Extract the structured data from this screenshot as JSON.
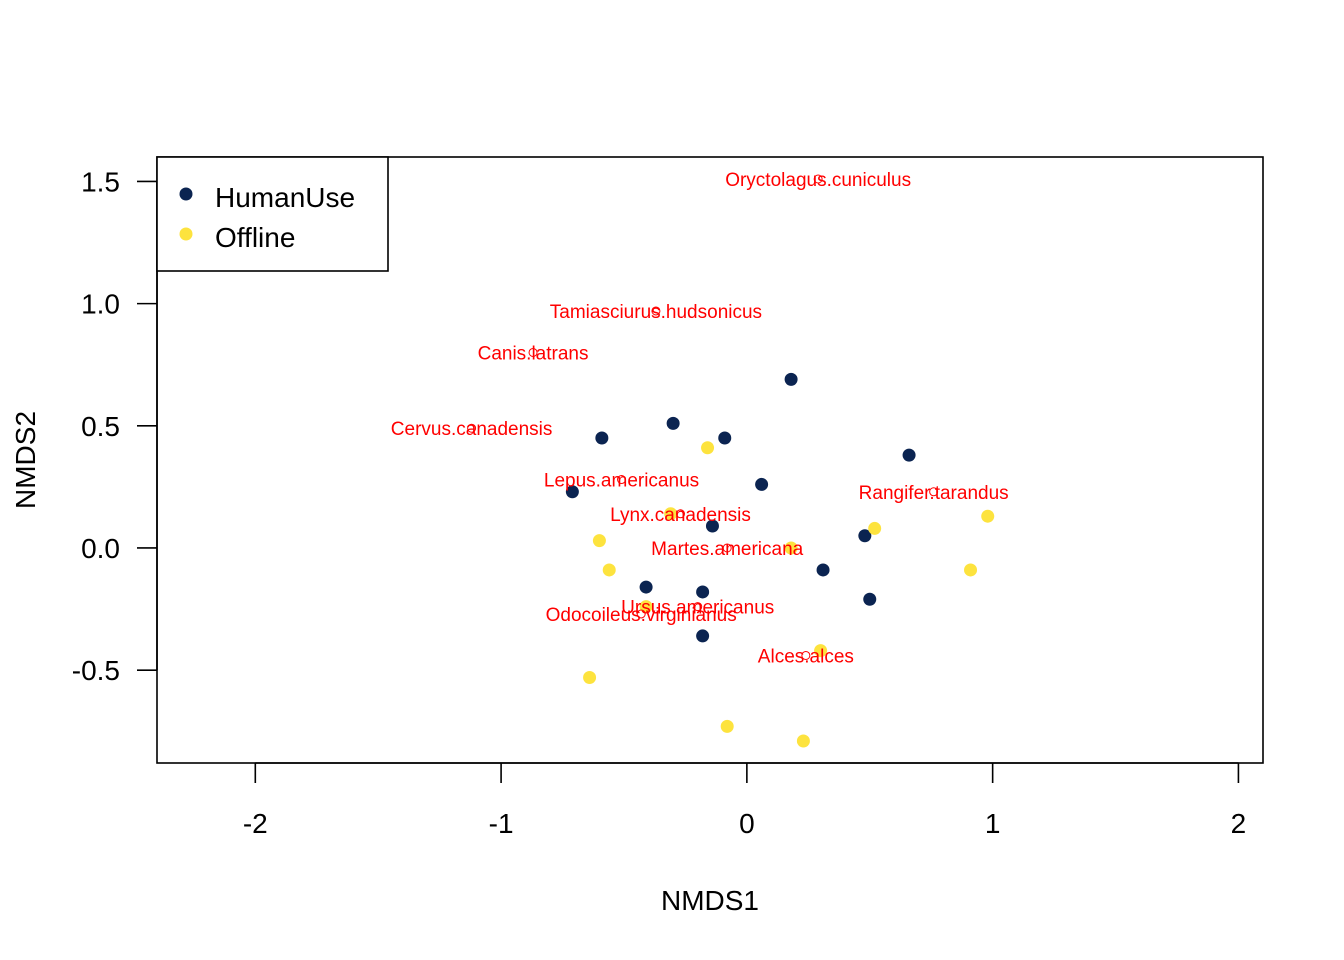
{
  "chart_data": {
    "type": "scatter",
    "title": "",
    "xlabel": "NMDS1",
    "ylabel": "NMDS2",
    "xlim": [
      -2.4,
      2.1
    ],
    "ylim": [
      -0.88,
      1.6
    ],
    "x_ticks": [
      -2,
      -1,
      0,
      1,
      2
    ],
    "y_ticks": [
      -0.5,
      0.0,
      0.5,
      1.0,
      1.5
    ],
    "x_tick_labels": [
      "-2",
      "-1",
      "0",
      "1",
      "2"
    ],
    "y_tick_labels": [
      "-0.5",
      "0.0",
      "0.5",
      "1.0",
      "1.5"
    ],
    "legend": {
      "position": "top-left"
    },
    "series": [
      {
        "name": "HumanUse",
        "color": "#0b2451",
        "points": [
          [
            0.18,
            0.69
          ],
          [
            -0.3,
            0.51
          ],
          [
            -0.59,
            0.45
          ],
          [
            -0.09,
            0.45
          ],
          [
            0.66,
            0.38
          ],
          [
            0.06,
            0.26
          ],
          [
            -0.71,
            0.23
          ],
          [
            -0.14,
            0.09
          ],
          [
            0.48,
            0.05
          ],
          [
            0.31,
            -0.09
          ],
          [
            -0.41,
            -0.16
          ],
          [
            -0.18,
            -0.18
          ],
          [
            0.5,
            -0.21
          ],
          [
            -0.18,
            -0.36
          ]
        ]
      },
      {
        "name": "Offline",
        "color": "#fde33e",
        "points": [
          [
            -0.16,
            0.41
          ],
          [
            -0.31,
            0.14
          ],
          [
            0.98,
            0.13
          ],
          [
            0.52,
            0.08
          ],
          [
            -0.6,
            0.03
          ],
          [
            0.18,
            0.0
          ],
          [
            -0.56,
            -0.09
          ],
          [
            0.91,
            -0.09
          ],
          [
            -0.41,
            -0.24
          ],
          [
            0.3,
            -0.42
          ],
          [
            -0.64,
            -0.53
          ],
          [
            -0.08,
            -0.73
          ],
          [
            0.23,
            -0.79
          ]
        ]
      }
    ],
    "species": {
      "color": "#ff0000",
      "items": [
        {
          "label": "Oryctolagus.cuniculus",
          "x": 0.29,
          "y": 1.51
        },
        {
          "label": "Tamiasciurus.hudsonicus",
          "x": -0.37,
          "y": 0.97
        },
        {
          "label": "Canis.latrans",
          "x": -0.87,
          "y": 0.8
        },
        {
          "label": "Cervus.canadensis",
          "x": -1.12,
          "y": 0.49
        },
        {
          "label": "Lepus.americanus",
          "x": -0.51,
          "y": 0.28
        },
        {
          "label": "Lynx.canadensis",
          "x": -0.27,
          "y": 0.14
        },
        {
          "label": "Rangifer.tarandus",
          "x": 0.76,
          "y": 0.23
        },
        {
          "label": "Martes.americana",
          "x": -0.08,
          "y": 0.0
        },
        {
          "label": "Ursus.americanus",
          "x": -0.2,
          "y": -0.24
        },
        {
          "label": "Odocoileus.virginianus",
          "x": -0.43,
          "y": -0.27
        },
        {
          "label": "Alces.alces",
          "x": 0.24,
          "y": -0.44
        }
      ]
    }
  }
}
